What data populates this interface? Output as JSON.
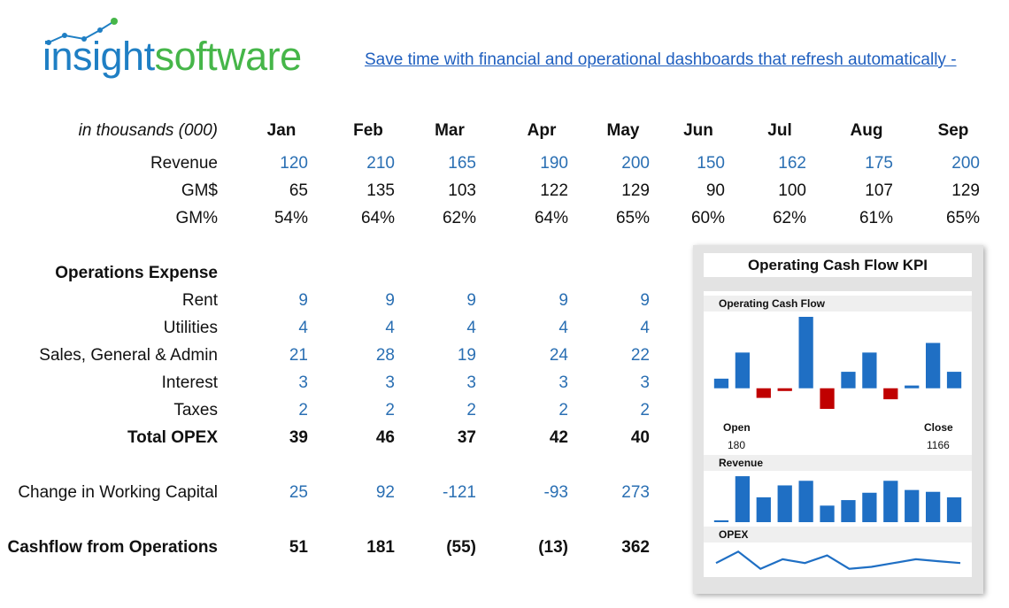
{
  "header": {
    "logo": {
      "part1": "insight",
      "part2": "software"
    },
    "link_text": "Save time with financial and operational dashboards that refresh automatically -"
  },
  "table": {
    "unit_label": "in thousands (000)",
    "months": [
      "Jan",
      "Feb",
      "Mar",
      "Apr",
      "May",
      "Jun",
      "Jul",
      "Aug",
      "Sep"
    ],
    "rows": {
      "revenue": {
        "label": "Revenue",
        "values": [
          "120",
          "210",
          "165",
          "190",
          "200",
          "150",
          "162",
          "175",
          "200"
        ]
      },
      "gm_dollar": {
        "label": "GM$",
        "values": [
          "65",
          "135",
          "103",
          "122",
          "129",
          "90",
          "100",
          "107",
          "129"
        ]
      },
      "gm_pct": {
        "label": "GM%",
        "values": [
          "54%",
          "64%",
          "62%",
          "64%",
          "65%",
          "60%",
          "62%",
          "61%",
          "65%"
        ]
      },
      "opex_heading": {
        "label": "Operations Expense"
      },
      "rent": {
        "label": "Rent",
        "values": [
          "9",
          "9",
          "9",
          "9",
          "9"
        ]
      },
      "utilities": {
        "label": "Utilities",
        "values": [
          "4",
          "4",
          "4",
          "4",
          "4"
        ]
      },
      "sga": {
        "label": "Sales, General & Admin",
        "values": [
          "21",
          "28",
          "19",
          "24",
          "22"
        ]
      },
      "interest": {
        "label": "Interest",
        "values": [
          "3",
          "3",
          "3",
          "3",
          "3"
        ]
      },
      "taxes": {
        "label": "Taxes",
        "values": [
          "2",
          "2",
          "2",
          "2",
          "2"
        ]
      },
      "total_opex": {
        "label": "Total OPEX",
        "values": [
          "39",
          "46",
          "37",
          "42",
          "40"
        ]
      },
      "wc": {
        "label": "Change in Working Capital",
        "values": [
          "25",
          "92",
          "-121",
          "-93",
          "273"
        ]
      },
      "cfo": {
        "label": "Cashflow from Operations",
        "values": [
          "51",
          "181",
          "(55)",
          "(13)",
          "362"
        ]
      }
    }
  },
  "kpi": {
    "title": "Operating Cash Flow KPI",
    "ocf_label": "Operating Cash Flow",
    "open_label": "Open",
    "open_value": "180",
    "close_label": "Close",
    "close_value": "1166",
    "revenue_label": "Revenue",
    "opex_label": "OPEX",
    "colors": {
      "positive": "#1f6fc4",
      "negative": "#c00000",
      "line": "#1f6fc4"
    }
  },
  "chart_data": [
    {
      "type": "bar",
      "title": "Operating Cash Flow",
      "values": [
        7,
        26,
        -7,
        -2,
        52,
        -15,
        12,
        26,
        -8,
        2,
        33,
        12
      ],
      "ylim": [
        -15,
        52
      ],
      "bar_colors": [
        "positive",
        "positive",
        "negative",
        "negative",
        "positive",
        "negative",
        "positive",
        "positive",
        "negative",
        "positive",
        "positive",
        "positive"
      ]
    },
    {
      "type": "bar",
      "title": "Revenue",
      "values": [
        2,
        50,
        27,
        40,
        45,
        18,
        24,
        32,
        45,
        35,
        33,
        27
      ],
      "ylim": [
        0,
        52
      ]
    },
    {
      "type": "line",
      "title": "OPEX",
      "values": [
        40,
        46,
        37,
        42,
        40,
        44,
        37,
        38,
        40,
        42,
        41,
        40
      ],
      "ylim": [
        35,
        48
      ]
    }
  ]
}
